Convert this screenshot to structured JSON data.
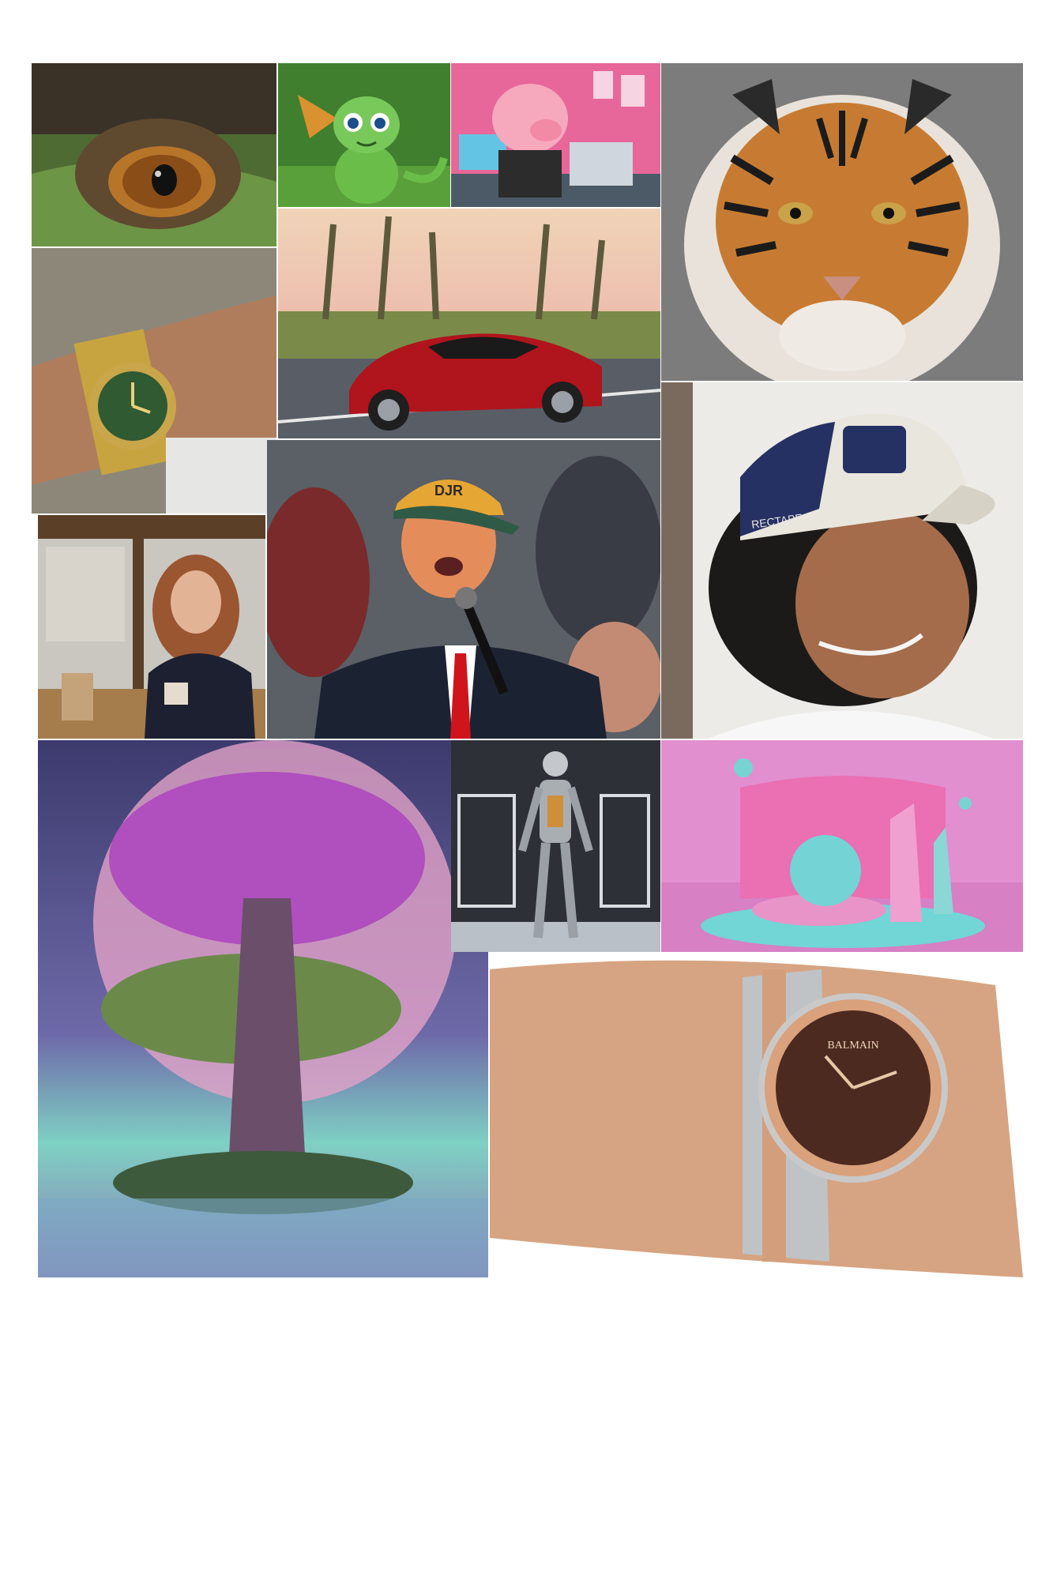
{
  "collage": {
    "tiles": [
      {
        "id": "crocodile-eye",
        "subject": "crocodile-eye"
      },
      {
        "id": "baby-dragon",
        "subject": "baby-dragon"
      },
      {
        "id": "pig-at-laptop",
        "subject": "pig-at-laptop"
      },
      {
        "id": "tiger-face",
        "subject": "tiger-face"
      },
      {
        "id": "gold-watch-wrist",
        "subject": "gold-watch-wrist"
      },
      {
        "id": "red-sports-car",
        "subject": "red-sports-car"
      },
      {
        "id": "woman-cafe",
        "subject": "woman-cafe"
      },
      {
        "id": "speaker-microphone",
        "subject": "speaker-microphone"
      },
      {
        "id": "man-cap",
        "subject": "man-cap"
      },
      {
        "id": "purple-tree",
        "subject": "purple-tree"
      },
      {
        "id": "robot-figure",
        "subject": "robot-figure"
      },
      {
        "id": "pink-3d-scene",
        "subject": "pink-3d-scene"
      },
      {
        "id": "brown-watch-wrist",
        "subject": "brown-watch-wrist"
      }
    ],
    "texts": {
      "cap_text": "RECTAPE",
      "hat_text": "DJR",
      "watch_brand": "BALMAIN"
    }
  }
}
